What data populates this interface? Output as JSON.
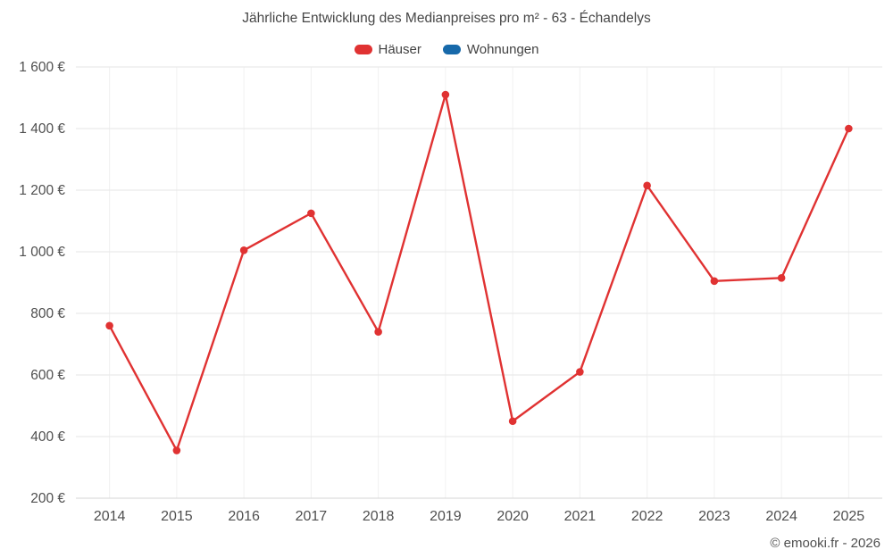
{
  "chart_data": {
    "type": "line",
    "title": "Jährliche Entwicklung des Medianpreises pro m² - 63 - Échandelys",
    "xlabel": "",
    "ylabel": "",
    "categories": [
      "2014",
      "2015",
      "2016",
      "2017",
      "2018",
      "2019",
      "2020",
      "2021",
      "2022",
      "2023",
      "2024",
      "2025"
    ],
    "series": [
      {
        "name": "Häuser",
        "color": "#e03232",
        "values": [
          760,
          355,
          1005,
          1125,
          740,
          1510,
          450,
          610,
          1215,
          905,
          915,
          1400
        ]
      },
      {
        "name": "Wohnungen",
        "color": "#1769aa",
        "values": []
      }
    ],
    "ylim": [
      200,
      1600
    ],
    "y_ticks": [
      200,
      400,
      600,
      800,
      1000,
      1200,
      1400,
      1600
    ],
    "y_tick_labels": [
      "200 €",
      "400 €",
      "600 €",
      "800 €",
      "1 000 €",
      "1 200 €",
      "1 400 €",
      "1 600 €"
    ],
    "grid": true,
    "legend_position": "top",
    "grid_color": "#e6e6e6",
    "grid_color_vertical": "#f0f0f0",
    "axis_baseline_color": "#d6d6d6",
    "text_color": "#4f4f4f"
  },
  "footer": {
    "credit": "© emooki.fr - 2026"
  }
}
